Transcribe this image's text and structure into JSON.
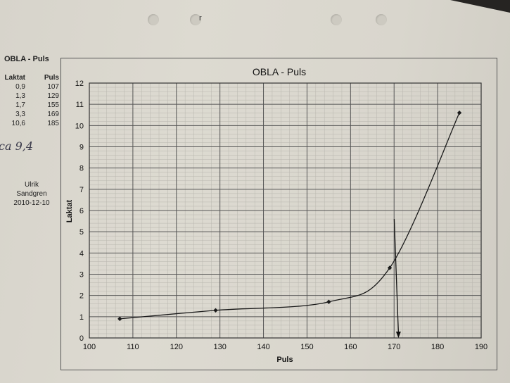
{
  "sidebar": {
    "title": "OBLA - Puls",
    "table_headers": [
      "Laktat",
      "Puls"
    ],
    "rows": [
      {
        "laktat": "0,9",
        "puls": "107"
      },
      {
        "laktat": "1,3",
        "puls": "129"
      },
      {
        "laktat": "1,7",
        "puls": "155"
      },
      {
        "laktat": "3,3",
        "puls": "169"
      },
      {
        "laktat": "10,6",
        "puls": "185"
      }
    ],
    "author_first": "Ulrik",
    "author_last": "Sandgren",
    "date": "2010-12-10",
    "handwritten_note": "ca 9,4",
    "margin_mark": "r"
  },
  "chart_data": {
    "type": "line",
    "title": "OBLA - Puls",
    "xlabel": "Puls",
    "ylabel": "Laktat",
    "xlim": [
      100,
      190
    ],
    "ylim": [
      0,
      12
    ],
    "x_ticks": [
      100,
      110,
      120,
      130,
      140,
      150,
      160,
      170,
      180,
      190
    ],
    "y_ticks": [
      0,
      1,
      2,
      3,
      4,
      5,
      6,
      7,
      8,
      9,
      10,
      11,
      12
    ],
    "grid": true,
    "series": [
      {
        "x": [
          107,
          129,
          155,
          169,
          185
        ],
        "y": [
          0.9,
          1.3,
          1.7,
          3.3,
          10.6
        ],
        "marker": "diamond",
        "line": "smooth",
        "color": "#1a1a1a"
      }
    ],
    "annotations": [
      {
        "type": "vertical-arrow",
        "x": 171,
        "y_from": 5.6,
        "y_to": 0
      }
    ]
  }
}
